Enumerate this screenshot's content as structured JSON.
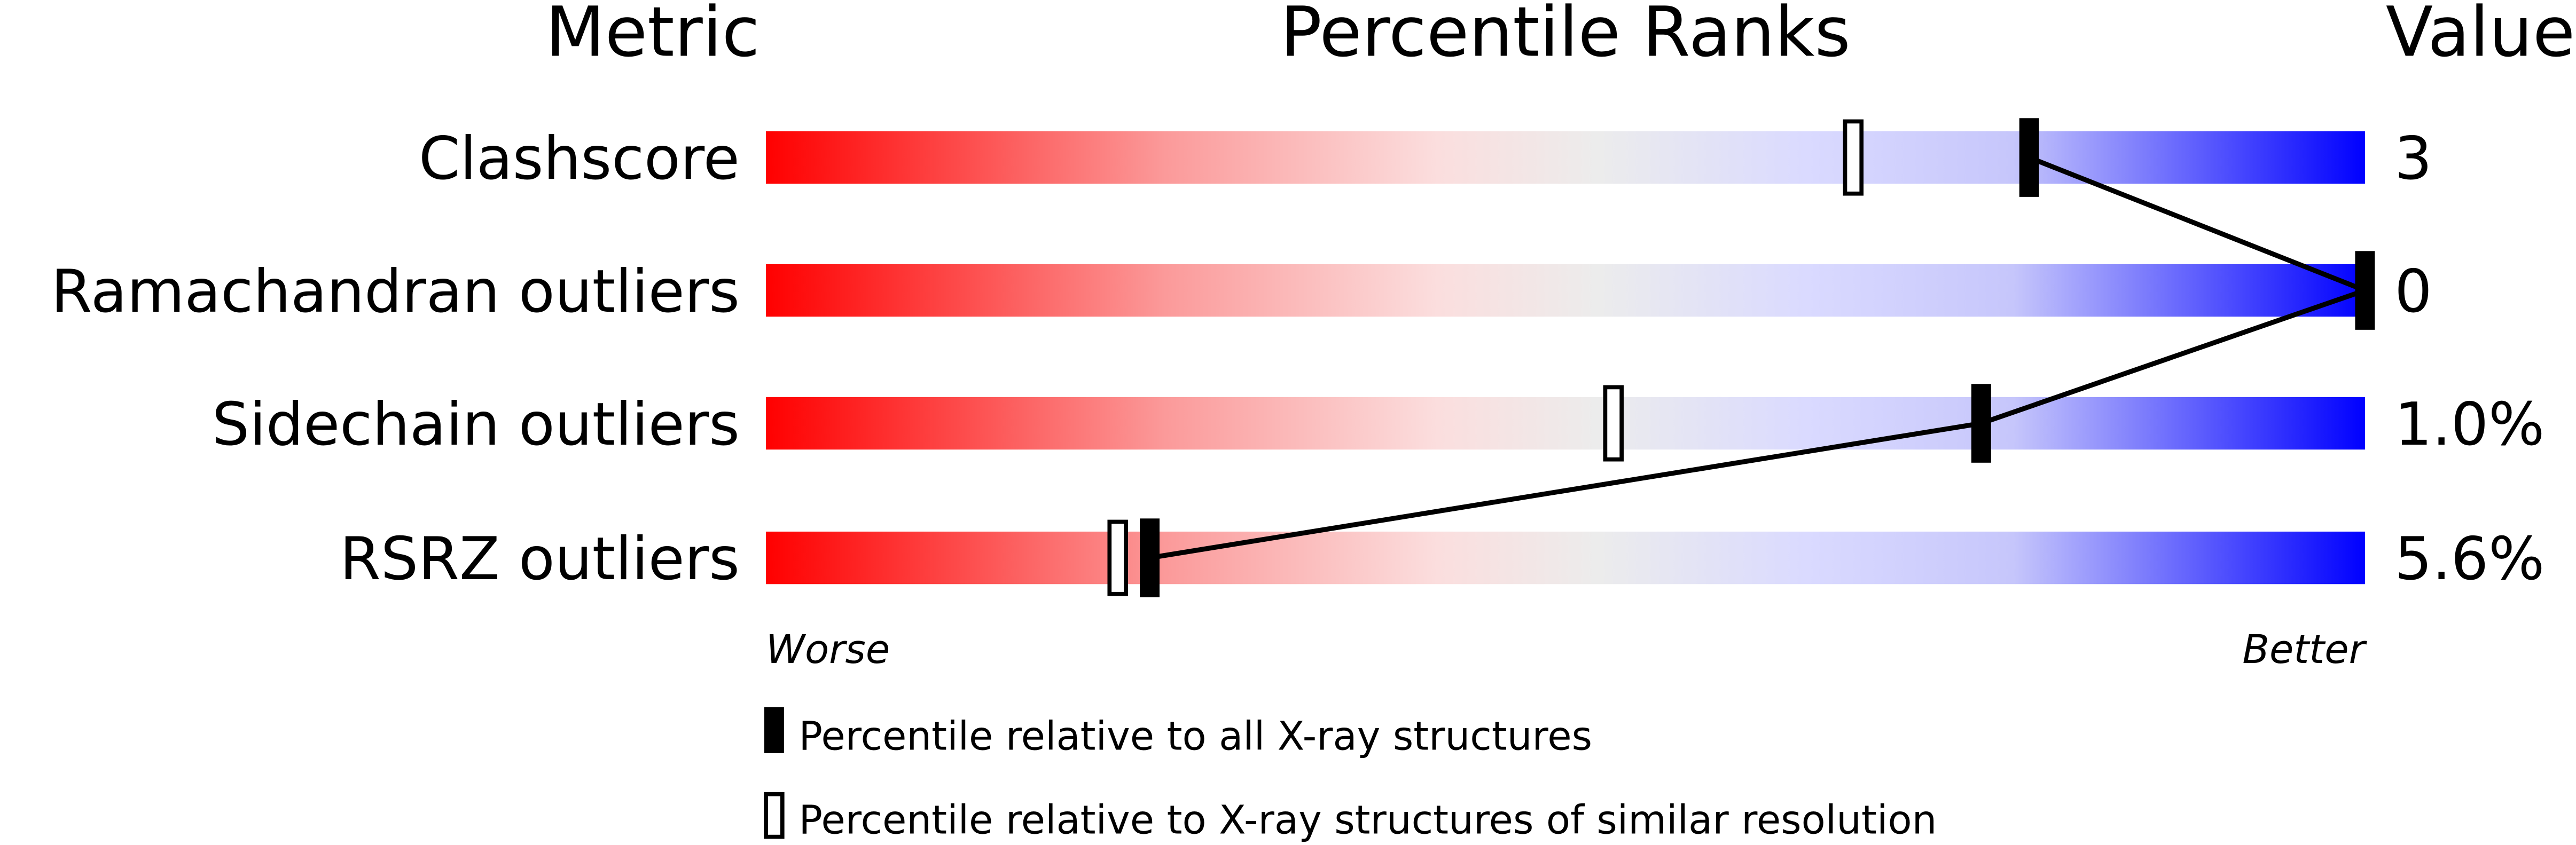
{
  "chart_data": {
    "type": "bar",
    "headers": {
      "metric": "Metric",
      "percentile": "Percentile Ranks",
      "value": "Value"
    },
    "xlim": [
      0,
      100
    ],
    "metrics": [
      {
        "name": "Clashscore",
        "value": "3",
        "percentile_all": 79,
        "percentile_similar": 68
      },
      {
        "name": "Ramachandran outliers",
        "value": "0",
        "percentile_all": 100,
        "percentile_similar": 100
      },
      {
        "name": "Sidechain outliers",
        "value": "1.0%",
        "percentile_all": 76,
        "percentile_similar": 53
      },
      {
        "name": "RSRZ outliers",
        "value": "5.6%",
        "percentile_all": 24,
        "percentile_similar": 22
      }
    ],
    "axis_labels": {
      "worse": "Worse",
      "better": "Better"
    },
    "legend": {
      "all": "Percentile relative to all X-ray structures",
      "similar": "Percentile relative to X-ray structures of similar resolution",
      "placement": "bottom"
    },
    "colors": {
      "worse": "#ff0000",
      "middle": "#eeeeee",
      "better": "#0000ff",
      "marker": "#000000"
    }
  }
}
